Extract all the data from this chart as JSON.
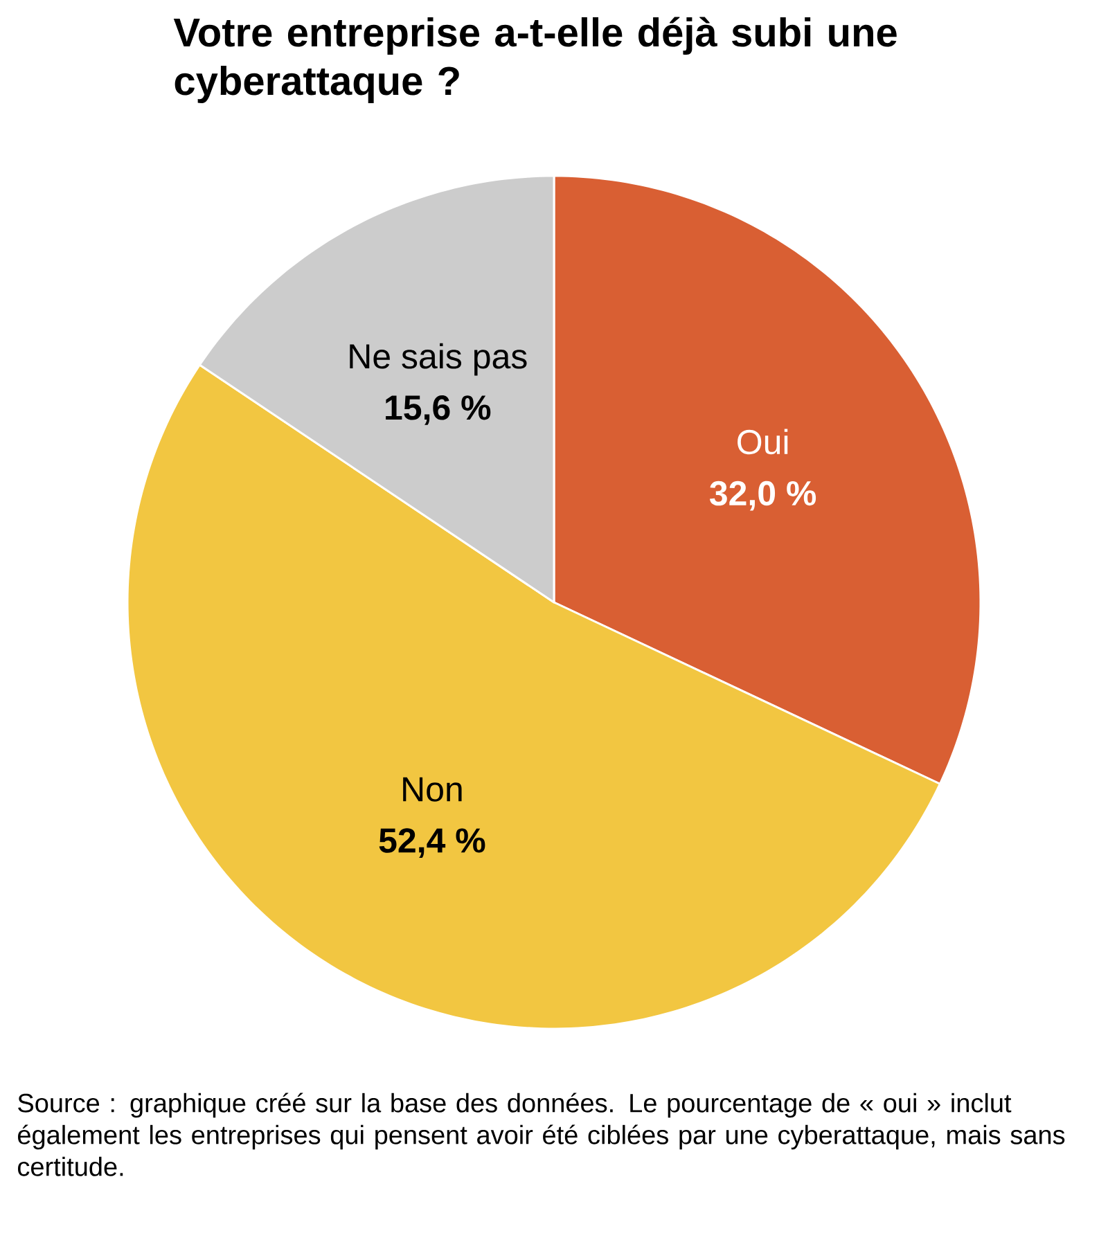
{
  "chart_data": {
    "type": "pie",
    "title": "Votre entreprise a-t-elle déjà subi une cyberattaque ?",
    "categories": [
      "Oui",
      "Non",
      "Ne sais pas"
    ],
    "values": [
      32.0,
      52.4,
      15.6
    ],
    "value_labels": [
      "32,0 %",
      "52,4 %",
      "15,6 %"
    ],
    "colors": [
      "#d95f33",
      "#f2c641",
      "#cccccc"
    ],
    "annotations": [
      "Source : graphique créé sur la base des données. Le pourcentage de « oui » inclut également les entreprises qui pensent avoir été ciblées par une cyberattaque, mais sans certitude."
    ]
  }
}
